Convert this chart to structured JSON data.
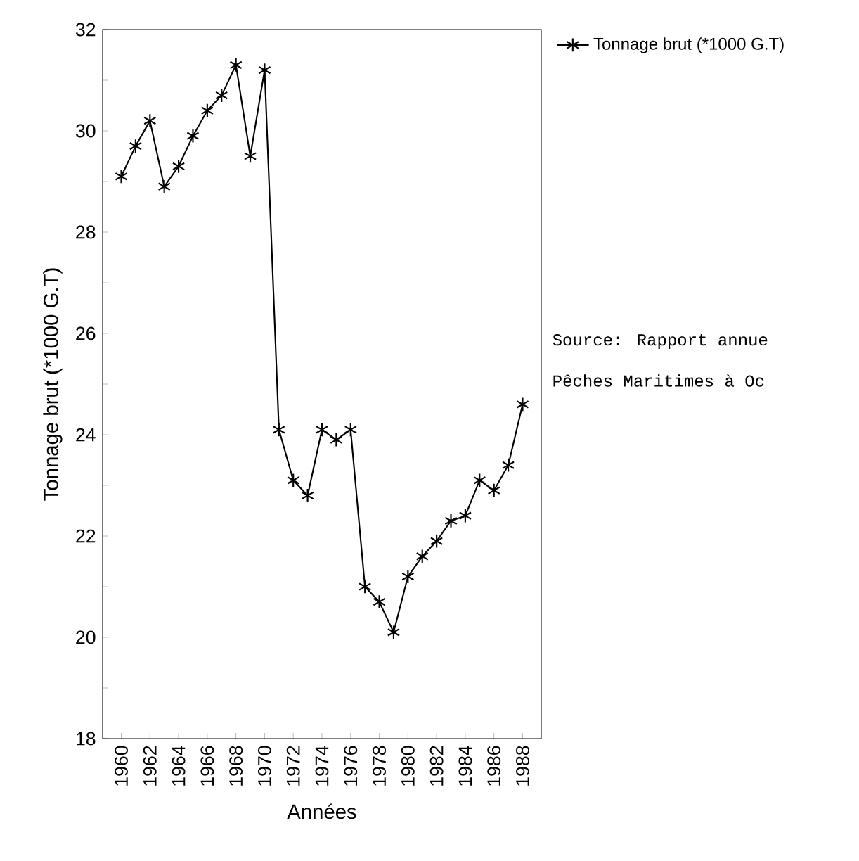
{
  "chart_data": {
    "type": "line",
    "xlabel": "Années",
    "ylabel": "Tonnage brut (*1000 G.T)",
    "x": [
      1960,
      1961,
      1962,
      1963,
      1964,
      1965,
      1966,
      1967,
      1968,
      1969,
      1970,
      1971,
      1972,
      1973,
      1974,
      1975,
      1976,
      1977,
      1978,
      1979,
      1980,
      1981,
      1982,
      1983,
      1984,
      1985,
      1986,
      1987,
      1988
    ],
    "series": [
      {
        "name": "Tonnage brut (*1000 G.T)",
        "color": "#000000",
        "values": [
          29.1,
          29.7,
          30.2,
          28.9,
          29.3,
          29.9,
          30.4,
          30.7,
          31.3,
          29.5,
          31.2,
          24.1,
          23.1,
          22.8,
          24.1,
          23.9,
          24.1,
          21.0,
          20.7,
          20.1,
          21.2,
          21.6,
          21.9,
          22.3,
          22.4,
          23.1,
          22.9,
          23.4,
          24.6
        ]
      }
    ],
    "xlim": [
      1958.7,
      1989.3
    ],
    "xticks": [
      1960,
      1962,
      1964,
      1966,
      1968,
      1970,
      1972,
      1974,
      1976,
      1978,
      1980,
      1982,
      1984,
      1986,
      1988
    ],
    "ylim": [
      18,
      32
    ],
    "yticks": [
      18,
      {
        "value": 19,
        "label": null
      },
      20,
      {
        "value": 21,
        "label": null
      },
      22,
      {
        "value": 23,
        "label": null
      },
      24,
      {
        "value": 25,
        "label": null
      },
      26,
      {
        "value": 27,
        "label": null
      },
      28,
      {
        "value": 29,
        "label": null
      },
      30,
      {
        "value": 31,
        "label": null
      },
      32
    ],
    "marker": "cross",
    "line_style": "solid",
    "legend": "top right",
    "grid": false,
    "annotations": [
      "Source: Rapport annue",
      "Pêches Maritimes à Oc"
    ]
  }
}
